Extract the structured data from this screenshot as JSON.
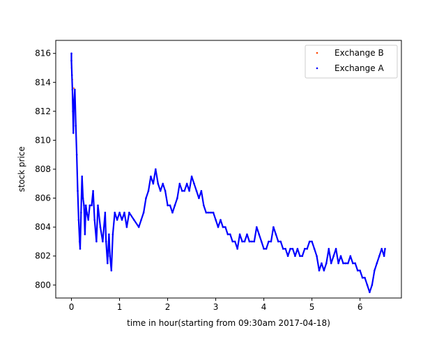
{
  "chart_data": {
    "type": "scatter",
    "title": "",
    "xlabel": "time in hour(starting from 09:30am 2017-04-18)",
    "ylabel": "stock price",
    "xlim": [
      -0.3266,
      6.86
    ],
    "ylim": [
      799.1,
      816.9
    ],
    "xticks": [
      0,
      1,
      2,
      3,
      4,
      5,
      6
    ],
    "yticks": [
      800,
      802,
      804,
      806,
      808,
      810,
      812,
      814,
      816
    ],
    "grid": false,
    "legend_position": "top-right",
    "series": [
      {
        "name": "Exchange B",
        "color": "#ff4500",
        "marker": "dot",
        "points": [
          [
            0.0,
            815.0
          ],
          [
            0.02,
            814.2
          ],
          [
            0.05,
            813.6
          ],
          [
            6.5,
            802.2
          ]
        ]
      },
      {
        "name": "Exchange A",
        "color": "#0000ff",
        "marker": "dot",
        "points": [
          [
            0.0,
            816.0
          ],
          [
            0.0,
            815.5
          ],
          [
            0.01,
            814.5
          ],
          [
            0.02,
            813.5
          ],
          [
            0.03,
            812.0
          ],
          [
            0.04,
            810.5
          ],
          [
            0.05,
            812.5
          ],
          [
            0.07,
            813.5
          ],
          [
            0.09,
            811.0
          ],
          [
            0.11,
            809.0
          ],
          [
            0.13,
            806.5
          ],
          [
            0.15,
            804.5
          ],
          [
            0.17,
            803.0
          ],
          [
            0.18,
            802.5
          ],
          [
            0.2,
            805.0
          ],
          [
            0.22,
            807.5
          ],
          [
            0.24,
            806.0
          ],
          [
            0.26,
            805.5
          ],
          [
            0.28,
            803.5
          ],
          [
            0.3,
            805.5
          ],
          [
            0.32,
            805.0
          ],
          [
            0.35,
            804.5
          ],
          [
            0.38,
            805.5
          ],
          [
            0.42,
            805.5
          ],
          [
            0.45,
            806.5
          ],
          [
            0.48,
            804.5
          ],
          [
            0.52,
            803.0
          ],
          [
            0.55,
            805.5
          ],
          [
            0.6,
            804.0
          ],
          [
            0.65,
            803.0
          ],
          [
            0.7,
            805.0
          ],
          [
            0.72,
            803.0
          ],
          [
            0.75,
            801.5
          ],
          [
            0.78,
            803.5
          ],
          [
            0.8,
            802.0
          ],
          [
            0.83,
            801.0
          ],
          [
            0.86,
            803.5
          ],
          [
            0.9,
            805.0
          ],
          [
            0.95,
            804.5
          ],
          [
            1.0,
            805.0
          ],
          [
            1.05,
            804.5
          ],
          [
            1.1,
            805.0
          ],
          [
            1.15,
            804.0
          ],
          [
            1.2,
            805.0
          ],
          [
            1.3,
            804.5
          ],
          [
            1.4,
            804.0
          ],
          [
            1.45,
            804.5
          ],
          [
            1.5,
            805.0
          ],
          [
            1.55,
            806.0
          ],
          [
            1.6,
            806.5
          ],
          [
            1.65,
            807.5
          ],
          [
            1.7,
            807.0
          ],
          [
            1.75,
            808.0
          ],
          [
            1.8,
            807.0
          ],
          [
            1.85,
            806.5
          ],
          [
            1.9,
            807.0
          ],
          [
            1.95,
            806.5
          ],
          [
            2.0,
            805.5
          ],
          [
            2.05,
            805.5
          ],
          [
            2.1,
            805.0
          ],
          [
            2.15,
            805.5
          ],
          [
            2.2,
            806.0
          ],
          [
            2.25,
            807.0
          ],
          [
            2.3,
            806.5
          ],
          [
            2.35,
            806.5
          ],
          [
            2.4,
            807.0
          ],
          [
            2.45,
            806.5
          ],
          [
            2.5,
            807.5
          ],
          [
            2.55,
            807.0
          ],
          [
            2.6,
            806.5
          ],
          [
            2.65,
            806.0
          ],
          [
            2.7,
            806.5
          ],
          [
            2.75,
            805.5
          ],
          [
            2.8,
            805.0
          ],
          [
            2.85,
            805.0
          ],
          [
            2.9,
            805.0
          ],
          [
            2.95,
            805.0
          ],
          [
            3.0,
            804.5
          ],
          [
            3.05,
            804.0
          ],
          [
            3.1,
            804.5
          ],
          [
            3.15,
            804.0
          ],
          [
            3.2,
            804.0
          ],
          [
            3.25,
            803.5
          ],
          [
            3.3,
            803.5
          ],
          [
            3.35,
            803.0
          ],
          [
            3.4,
            803.0
          ],
          [
            3.45,
            802.5
          ],
          [
            3.5,
            803.5
          ],
          [
            3.55,
            803.0
          ],
          [
            3.6,
            803.0
          ],
          [
            3.65,
            803.5
          ],
          [
            3.7,
            803.0
          ],
          [
            3.75,
            803.0
          ],
          [
            3.8,
            803.0
          ],
          [
            3.85,
            804.0
          ],
          [
            3.9,
            803.5
          ],
          [
            3.95,
            803.0
          ],
          [
            4.0,
            802.5
          ],
          [
            4.05,
            802.5
          ],
          [
            4.1,
            803.0
          ],
          [
            4.15,
            803.0
          ],
          [
            4.2,
            804.0
          ],
          [
            4.25,
            803.5
          ],
          [
            4.3,
            803.0
          ],
          [
            4.35,
            803.0
          ],
          [
            4.4,
            802.5
          ],
          [
            4.45,
            802.5
          ],
          [
            4.5,
            802.0
          ],
          [
            4.55,
            802.5
          ],
          [
            4.6,
            802.5
          ],
          [
            4.65,
            802.0
          ],
          [
            4.7,
            802.5
          ],
          [
            4.75,
            802.0
          ],
          [
            4.8,
            802.0
          ],
          [
            4.85,
            802.5
          ],
          [
            4.9,
            802.5
          ],
          [
            4.95,
            803.0
          ],
          [
            5.0,
            803.0
          ],
          [
            5.05,
            802.5
          ],
          [
            5.1,
            802.0
          ],
          [
            5.15,
            801.0
          ],
          [
            5.2,
            801.5
          ],
          [
            5.25,
            801.0
          ],
          [
            5.3,
            801.5
          ],
          [
            5.35,
            802.5
          ],
          [
            5.4,
            801.5
          ],
          [
            5.45,
            802.0
          ],
          [
            5.5,
            802.5
          ],
          [
            5.55,
            801.5
          ],
          [
            5.6,
            802.0
          ],
          [
            5.65,
            801.5
          ],
          [
            5.7,
            801.5
          ],
          [
            5.75,
            801.5
          ],
          [
            5.8,
            802.0
          ],
          [
            5.85,
            801.5
          ],
          [
            5.9,
            801.5
          ],
          [
            5.95,
            801.0
          ],
          [
            6.0,
            801.0
          ],
          [
            6.05,
            800.5
          ],
          [
            6.1,
            800.5
          ],
          [
            6.15,
            800.0
          ],
          [
            6.2,
            799.5
          ],
          [
            6.25,
            800.0
          ],
          [
            6.3,
            801.0
          ],
          [
            6.35,
            801.5
          ],
          [
            6.4,
            802.0
          ],
          [
            6.45,
            802.5
          ],
          [
            6.5,
            802.0
          ],
          [
            6.52,
            802.5
          ]
        ]
      }
    ]
  }
}
